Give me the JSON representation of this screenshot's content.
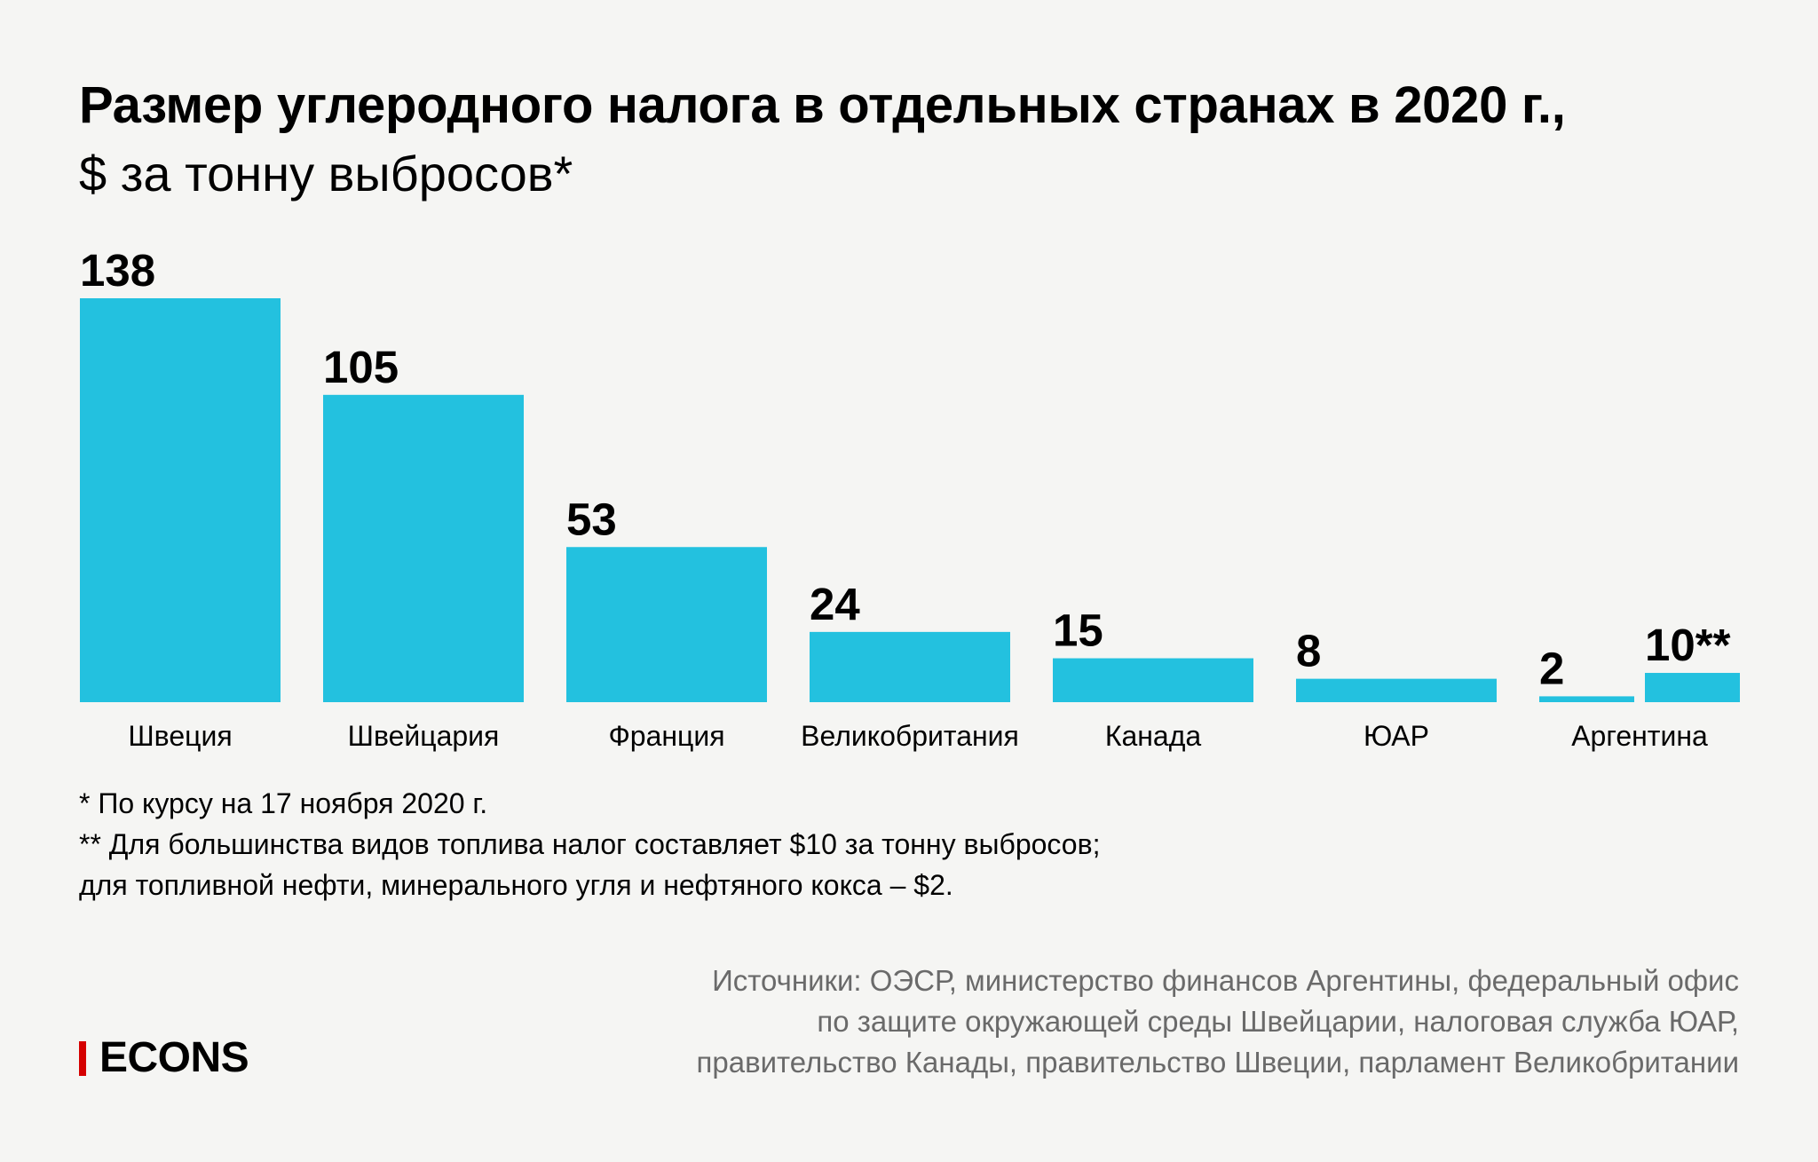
{
  "header": {
    "title": "Размер углеродного налога в отдельных странах в 2020 г.,",
    "subtitle": "$ за тонну выбросов*"
  },
  "chart_data": {
    "type": "bar",
    "title": "Размер углеродного налога в отдельных странах в 2020 г.",
    "ylabel": "$ за тонну выбросов",
    "xlabel": "",
    "categories": [
      "Швеция",
      "Швейцария",
      "Франция",
      "Великобритания",
      "Канада",
      "ЮАР",
      "Аргентина"
    ],
    "bars": [
      {
        "category": "Швеция",
        "values": [
          138
        ],
        "labels": [
          "138"
        ]
      },
      {
        "category": "Швейцария",
        "values": [
          105
        ],
        "labels": [
          "105"
        ]
      },
      {
        "category": "Франция",
        "values": [
          53
        ],
        "labels": [
          "53"
        ]
      },
      {
        "category": "Великобритания",
        "values": [
          24
        ],
        "labels": [
          "24"
        ]
      },
      {
        "category": "Канада",
        "values": [
          15
        ],
        "labels": [
          "15"
        ]
      },
      {
        "category": "ЮАР",
        "values": [
          8
        ],
        "labels": [
          "8"
        ]
      },
      {
        "category": "Аргентина",
        "values": [
          2,
          10
        ],
        "labels": [
          "2",
          "10**"
        ]
      }
    ],
    "ylim": [
      0,
      138
    ],
    "grid": false,
    "axis_visible": false,
    "bar_color": "#23c1df"
  },
  "footnotes": [
    "* По курсу на 17 ноября 2020 г.",
    "** Для большинства видов топлива налог составляет $10 за тонну выбросов;",
    "для топливной нефти, минерального угля и нефтяного кокса – $2."
  ],
  "sources": [
    "Источники: ОЭСР, министерство финансов Аргентины, федеральный офис",
    "по защите окружающей среды Швейцарии, налоговая служба ЮАР,",
    "правительство Канады, правительство Швеции, парламент Великобритании"
  ],
  "logo": {
    "text": "ECONS",
    "accent_color": "#d50000"
  }
}
